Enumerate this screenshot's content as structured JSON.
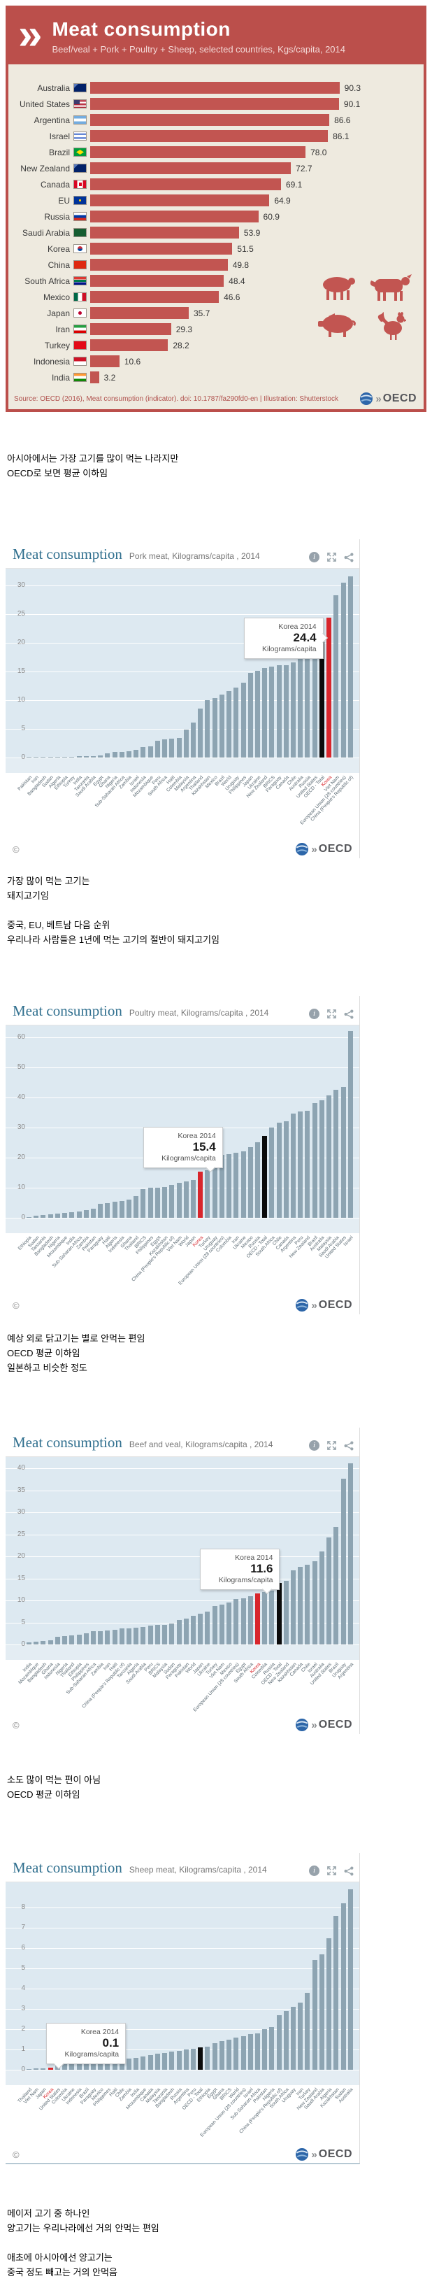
{
  "ui": {
    "oecd_text": "OECD",
    "copyright": "©",
    "header_icons": [
      "info-icon",
      "fullscreen-icon",
      "share-icon"
    ],
    "animal_icons": [
      "sheep",
      "cow",
      "pig",
      "rooster"
    ],
    "colors": {
      "infographic_red": "#bb4f4b",
      "infographic_bar": "#c25551",
      "infographic_bg": "#eeeadf",
      "plot_bg": "#dde9f1",
      "bar_gray_blue": "#8da4b2",
      "korea_red": "#d8262c",
      "oecd_black": "#000000",
      "chart_title_blue": "#31708f"
    }
  },
  "commentary_blocks": [
    [
      "아시아에서는 가장 고기를 많이 먹는 나라지만",
      "OECD로 보면 평균 이하임"
    ],
    [
      "가장 많이 먹는 고기는",
      "돼지고기임",
      "",
      "중국, EU, 베트남 다음 순위",
      "우리나라 사람들은 1년에 먹는 고기의 절반이 돼지고기임"
    ],
    [
      "예상 외로 닭고기는 별로 안먹는 편임",
      "OECD 평균 이하임",
      "일본하고 비슷한 정도"
    ],
    [
      "소도 많이 먹는 편이 아님",
      "OECD 평균 이하임"
    ],
    [
      "메이저 고기 중 하나인",
      "양고기는 우리나라에선 거의 안먹는 편임",
      "",
      "애초에 아시아에선 양고기는",
      "중국 정도 빼고는 거의 안먹음"
    ]
  ],
  "chart_data": [
    {
      "type": "bar",
      "orientation": "horizontal",
      "title": "Meat consumption",
      "subtitle": "Beef/veal + Pork + Poultry + Sheep, selected countries, Kgs/capita, 2014",
      "source": "Source: OECD (2016), Meat consumption (indicator). doi: 10.1787/fa290fd0-en | Illustration: Shutterstock",
      "xlim": [
        0,
        95
      ],
      "categories": [
        "Australia",
        "United States",
        "Argentina",
        "Israel",
        "Brazil",
        "New Zealand",
        "Canada",
        "EU",
        "Russia",
        "Saudi Arabia",
        "Korea",
        "China",
        "South Africa",
        "Mexico",
        "Japan",
        "Iran",
        "Turkey",
        "Indonesia",
        "India"
      ],
      "values": [
        90.3,
        90.1,
        86.6,
        86.1,
        78.0,
        72.7,
        69.1,
        64.9,
        60.9,
        53.9,
        51.5,
        49.8,
        48.4,
        46.6,
        35.7,
        29.3,
        28.2,
        10.6,
        3.2
      ],
      "value_labels": [
        "90.3",
        "90.1",
        "86.6",
        "86.1",
        "78.0",
        "72.7",
        "69.1",
        "64.9",
        "60.9",
        "53.9",
        "51.5",
        "49.8",
        "48.4",
        "46.6",
        "35.7",
        "29.3",
        "28.2",
        "10.6",
        "3.2"
      ],
      "flags": [
        "australia",
        "united-states",
        "argentina",
        "israel",
        "brazil",
        "new-zealand",
        "canada",
        "eu",
        "russia",
        "saudi-arabia",
        "korea",
        "china",
        "south-africa",
        "mexico",
        "japan",
        "iran",
        "turkey",
        "indonesia",
        "india"
      ]
    },
    {
      "type": "bar",
      "title": "Meat consumption",
      "subtitle": "Pork meat, Kilograms/capita , 2014",
      "ylim": [
        0,
        32
      ],
      "yticks": [
        0,
        5,
        10,
        15,
        20,
        25,
        30
      ],
      "grid": true,
      "highlight_category": "Korea",
      "highlight_color": "#d8262c",
      "black_category": "OECD - Total",
      "tooltip": {
        "title": "Korea 2014",
        "value": "24.4",
        "unit": "Kilograms/capita"
      },
      "tooltip_placement": "left",
      "categories": [
        "Pakistan",
        "Iran",
        "Bangladesh",
        "Sudan",
        "Algeria",
        "Ethiopia",
        "Turkey",
        "India",
        "Tanzania",
        "Saudi Arabia",
        "Egypt",
        "Ghana",
        "Nigeria",
        "Sub-Saharan Africa",
        "Zambia",
        "Israel",
        "Indonesia",
        "Mozambique",
        "Peru",
        "South Africa",
        "Haiti",
        "Colombia",
        "Malaysia",
        "Argentina",
        "Thailand",
        "Kazakhstan",
        "Mexico",
        "Brazil",
        "World",
        "Uruguay",
        "Philippines",
        "Japan",
        "Ukraine",
        "New Zealand",
        "BRICS",
        "Paraguay",
        "Canada",
        "Chile",
        "Australia",
        "Russia",
        "United States",
        "OECD - Total",
        "Korea",
        "Viet Nam",
        "European Union (28 countries)",
        "China (People's Republic of)"
      ],
      "values": [
        0.02,
        0.05,
        0.05,
        0.05,
        0.08,
        0.1,
        0.15,
        0.25,
        0.3,
        0.3,
        0.4,
        0.7,
        1.0,
        1.0,
        1.1,
        1.3,
        1.8,
        2.0,
        2.9,
        3.2,
        3.3,
        3.4,
        4.9,
        6.1,
        8.5,
        10.0,
        10.4,
        11.0,
        11.6,
        12.2,
        13.1,
        14.7,
        15.1,
        15.6,
        15.9,
        16.1,
        16.1,
        16.6,
        17.9,
        20.0,
        20.1,
        21.6,
        24.4,
        28.3,
        30.5,
        31.6
      ]
    },
    {
      "type": "bar",
      "title": "Meat consumption",
      "subtitle": "Poultry meat, Kilograms/capita , 2014",
      "ylim": [
        0,
        63
      ],
      "yticks": [
        0,
        10,
        20,
        30,
        40,
        50,
        60
      ],
      "grid": true,
      "highlight_category": "Korea",
      "highlight_color": "#d8262c",
      "black_category": "OECD - Total",
      "tooltip": {
        "title": "Korea 2014",
        "value": "15.4",
        "unit": "Kilograms/capita"
      },
      "tooltip_placement": "down-right",
      "categories": [
        "Ethiopia",
        "Sudan",
        "Tanzania",
        "Bangladesh",
        "Nigeria",
        "Mozambique",
        "India",
        "Sub-Saharan Africa",
        "Zambia",
        "Pakistan",
        "Paraguay",
        "Haiti",
        "Algeria",
        "Indonesia",
        "Ghana",
        "Thailand",
        "BRICS",
        "Philippines",
        "Egypt",
        "Kazakhstan",
        "China (People's Republic of)",
        "Viet Nam",
        "World",
        "Japan",
        "Korea",
        "Turkey",
        "Uruguay",
        "European Union (28 countries)",
        "Colombia",
        "Iran",
        "Ukraine",
        "Mexico",
        "Russia",
        "OECD - Total",
        "South Africa",
        "Chile",
        "Canada",
        "Argentina",
        "Peru",
        "New Zealand",
        "Brazil",
        "Australia",
        "Malaysia",
        "Saudi Arabia",
        "United States",
        "Israel"
      ],
      "values": [
        0.3,
        0.8,
        1.0,
        1.2,
        1.3,
        1.6,
        1.9,
        2.0,
        2.6,
        3.1,
        4.6,
        5.0,
        5.3,
        5.6,
        6.1,
        7.1,
        9.6,
        9.9,
        10.1,
        10.3,
        10.9,
        11.6,
        12.2,
        12.6,
        15.4,
        15.8,
        20.6,
        20.9,
        21.1,
        21.6,
        22.1,
        23.6,
        25.1,
        27.1,
        30.1,
        31.6,
        32.1,
        34.6,
        35.4,
        35.5,
        38.1,
        39.1,
        40.6,
        42.6,
        43.6,
        62.1
      ]
    },
    {
      "type": "bar",
      "title": "Meat consumption",
      "subtitle": "Beef and veal, Kilograms/capita , 2014",
      "ylim": [
        0,
        41.5
      ],
      "yticks": [
        0,
        5,
        10,
        15,
        20,
        25,
        30,
        35,
        40
      ],
      "grid": true,
      "highlight_category": "Korea",
      "highlight_color": "#d8262c",
      "black_category": "OECD - Total",
      "tooltip": {
        "title": "Korea 2014",
        "value": "11.6",
        "unit": "Kilograms/capita"
      },
      "tooltip_placement": "down-right",
      "categories": [
        "India",
        "Mozambique",
        "Bangladesh",
        "Ghana",
        "Indonesia",
        "Nigeria",
        "Thailand",
        "Ethiopia",
        "Philippines",
        "Sub-Saharan Africa",
        "Zambia",
        "Iran",
        "Haiti",
        "China (People's Republic of)",
        "Tanzania",
        "Algeria",
        "Saudi Arabia",
        "Peru",
        "BRICS",
        "Malaysia",
        "Sudan",
        "Paraguay",
        "Pakistan",
        "World",
        "Japan",
        "Ukraine",
        "Turkey",
        "Viet Nam",
        "Mexico",
        "European Union (28 countries)",
        "Egypt",
        "South Africa",
        "Korea",
        "Colombia",
        "Russia",
        "OECD - Total",
        "New Zealand",
        "Kazakhstan",
        "Canada",
        "Chile",
        "Israel",
        "Australia",
        "United States",
        "Brazil",
        "Uruguay",
        "Argentina"
      ],
      "values": [
        0.5,
        0.7,
        0.8,
        0.9,
        1.8,
        1.9,
        2.0,
        2.3,
        2.6,
        3.0,
        3.0,
        3.2,
        3.3,
        3.6,
        3.7,
        3.8,
        3.9,
        4.3,
        4.4,
        4.5,
        4.7,
        5.5,
        5.8,
        6.5,
        7.0,
        7.4,
        8.8,
        9.1,
        9.6,
        10.3,
        10.5,
        10.9,
        11.6,
        11.9,
        12.3,
        13.9,
        14.4,
        16.9,
        17.6,
        18.1,
        18.9,
        21.1,
        24.3,
        26.6,
        37.6,
        41.1
      ]
    },
    {
      "type": "bar",
      "title": "Meat consumption",
      "subtitle": "Sheep meat, Kilograms/capita , 2014",
      "ylim": [
        0,
        9
      ],
      "yticks": [
        0,
        1,
        2,
        3,
        4,
        5,
        6,
        7,
        8
      ],
      "grid": true,
      "highlight_category": "Korea",
      "highlight_color": "#d8262c",
      "black_category": "OECD - Total",
      "tooltip": {
        "title": "Korea 2014",
        "value": "0.1",
        "unit": "Kilograms/capita"
      },
      "tooltip_placement": "down-left",
      "categories": [
        "Thailand",
        "Viet Nam",
        "Japan",
        "Korea",
        "United States",
        "Colombia",
        "Ukraine",
        "Indonesia",
        "Brazil",
        "Paraguay",
        "Mexico",
        "Philippines",
        "Haiti",
        "Chile",
        "Zambia",
        "India",
        "Mozambique",
        "Canada",
        "Malaysia",
        "Tanzania",
        "Bangladesh",
        "Russia",
        "Argentina",
        "Peru",
        "OECD - Total",
        "Ethiopia",
        "Egypt",
        "Ghana",
        "BRICS",
        "World",
        "European Union (28 countries)",
        "Israel",
        "Sub-Saharan Africa",
        "Pakistan",
        "Nigeria",
        "China (People's Republic of)",
        "South Africa",
        "Uruguay",
        "Iran",
        "Turkey",
        "New Zealand",
        "Saudi Arabia",
        "Algeria",
        "Kazakhstan",
        "Sudan",
        "Australia"
      ],
      "values": [
        0.02,
        0.06,
        0.08,
        0.1,
        0.4,
        0.4,
        0.42,
        0.44,
        0.44,
        0.46,
        0.48,
        0.5,
        0.52,
        0.54,
        0.56,
        0.58,
        0.65,
        0.72,
        0.78,
        0.82,
        0.88,
        0.92,
        1.0,
        1.05,
        1.1,
        1.15,
        1.3,
        1.4,
        1.5,
        1.6,
        1.65,
        1.75,
        1.8,
        2.0,
        2.1,
        2.7,
        2.9,
        3.1,
        3.3,
        3.8,
        5.4,
        5.7,
        6.5,
        7.6,
        8.2,
        8.9
      ]
    }
  ]
}
